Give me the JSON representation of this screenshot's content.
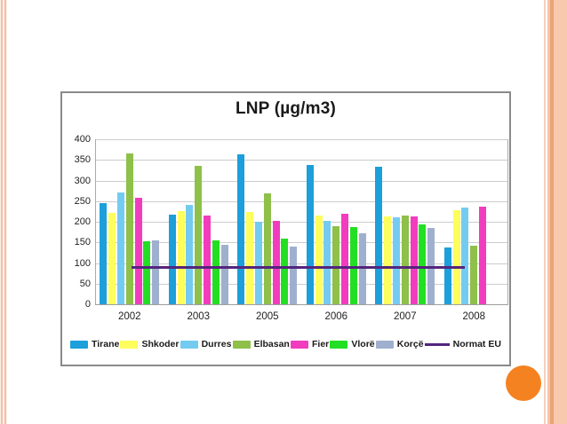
{
  "decor": {
    "left_stripe_color": "#f2c0aa",
    "right_band_color": "#f9c9ae",
    "right_band_dark_stripe": "#e8a478",
    "circle_color": "#f58220",
    "chart_box_border": "#8a8a8a"
  },
  "chart_data": {
    "type": "bar",
    "title": "LNP (µg/m3)",
    "categories": [
      "2002",
      "2003",
      "2005",
      "2006",
      "2007",
      "2008"
    ],
    "series": [
      {
        "name": "Tirane",
        "color": "#1c9fdb",
        "values": [
          245,
          218,
          364,
          338,
          333,
          138
        ]
      },
      {
        "name": "Shkoder",
        "color": "#fdfd5c",
        "values": [
          222,
          226,
          224,
          216,
          212,
          228
        ]
      },
      {
        "name": "Durres",
        "color": "#74cbf2",
        "values": [
          272,
          240,
          201,
          202,
          210,
          234
        ]
      },
      {
        "name": "Elbasan",
        "color": "#8ec04a",
        "values": [
          365,
          335,
          268,
          190,
          216,
          143
        ]
      },
      {
        "name": "Fier",
        "color": "#f23cbe",
        "values": [
          258,
          215,
          203,
          219,
          214,
          237
        ]
      },
      {
        "name": "Vlorë",
        "color": "#23df23",
        "values": [
          152,
          154,
          160,
          187,
          193,
          null
        ]
      },
      {
        "name": "Korçë",
        "color": "#9fb0ce",
        "values": [
          154,
          145,
          140,
          172,
          185,
          null
        ]
      }
    ],
    "reference_line": {
      "name": "Normat EU",
      "color": "#53257d",
      "value": 90,
      "x_start_frac": 0.088,
      "x_end_frac": 0.895
    },
    "y_ticks": [
      0,
      50,
      100,
      150,
      200,
      250,
      300,
      350,
      400
    ],
    "ylim": [
      0,
      400
    ],
    "grid": true,
    "legend_position": "bottom"
  }
}
